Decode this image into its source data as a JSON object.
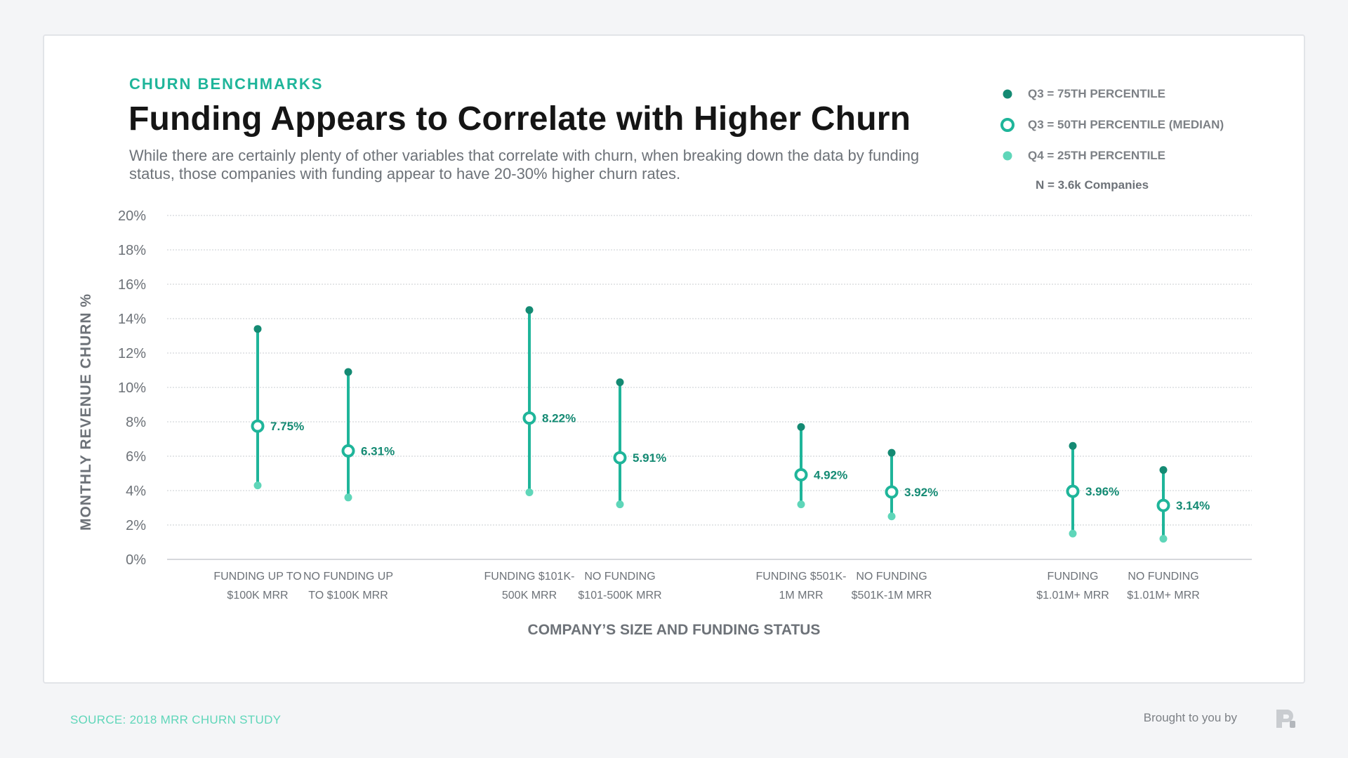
{
  "header": {
    "kicker": "CHURN BENCHMARKS",
    "title": "Funding Appears to Correlate with Higher Churn",
    "subtitle": "While there are certainly plenty of other variables that correlate with churn, when breaking down the data by funding status, those companies with funding appear to have 20-30% higher churn rates."
  },
  "legend": {
    "q3_label": "Q3 = 75TH PERCENTILE",
    "median_label": "Q3 = 50TH PERCENTILE (MEDIAN)",
    "q1_label": "Q4 = 25TH PERCENTILE",
    "n_label": "N = 3.6k Companies"
  },
  "footer": {
    "source": "SOURCE: 2018 MRR CHURN STUDY",
    "brought_by": "Brought to you by"
  },
  "colors": {
    "accent": "#1fb59a",
    "q3_dot": "#148a73",
    "q1_dot": "#5fd6b9",
    "label_text": "#148a73",
    "axis_text": "#6d7278",
    "grid": "#c9ccd0"
  },
  "chart_data": {
    "type": "range-dot",
    "title": "Funding Appears to Correlate with Higher Churn",
    "xlabel": "COMPANY’S SIZE AND FUNDING STATUS",
    "ylabel": "MONTHLY REVENUE CHURN %",
    "ylim": [
      0,
      20
    ],
    "yticks": [
      0,
      2,
      4,
      6,
      8,
      10,
      12,
      14,
      16,
      18,
      20
    ],
    "ytick_labels": [
      "0%",
      "2%",
      "4%",
      "6%",
      "8%",
      "10%",
      "12%",
      "14%",
      "16%",
      "18%",
      "20%"
    ],
    "grid": true,
    "legend_position": "top-right",
    "categories": [
      [
        "FUNDING UP TO",
        "$100K MRR"
      ],
      [
        "NO FUNDING UP",
        "TO $100K MRR"
      ],
      [
        "FUNDING  $101K-",
        "500K MRR"
      ],
      [
        "NO FUNDING",
        "$101-500K MRR"
      ],
      [
        "FUNDING  $501K-",
        "1M MRR"
      ],
      [
        "NO FUNDING",
        "$501K-1M MRR"
      ],
      [
        "FUNDING",
        "$1.01M+ MRR"
      ],
      [
        "NO FUNDING",
        "$1.01M+ MRR"
      ]
    ],
    "groups": [
      [
        0,
        1
      ],
      [
        2,
        3
      ],
      [
        4,
        5
      ],
      [
        6,
        7
      ]
    ],
    "series": [
      {
        "name": "Q3 = 75TH PERCENTILE",
        "values": [
          13.4,
          10.9,
          14.5,
          10.3,
          7.7,
          6.2,
          6.6,
          5.2
        ]
      },
      {
        "name": "Q3 = 50TH PERCENTILE (MEDIAN)",
        "values": [
          7.75,
          6.31,
          8.22,
          5.91,
          4.92,
          3.92,
          3.96,
          3.14
        ]
      },
      {
        "name": "Q4 = 25TH PERCENTILE",
        "values": [
          4.3,
          3.6,
          3.9,
          3.2,
          3.2,
          2.5,
          1.5,
          1.2
        ]
      }
    ],
    "median_labels": [
      "7.75%",
      "6.31%",
      "8.22%",
      "5.91%",
      "4.92%",
      "3.92%",
      "3.96%",
      "3.14%"
    ]
  }
}
